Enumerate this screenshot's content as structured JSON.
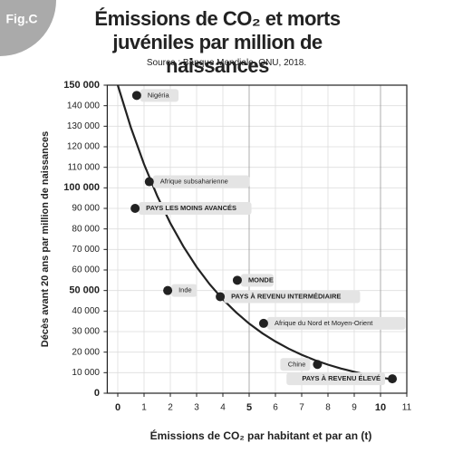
{
  "chart_data": {
    "type": "scatter",
    "badge": "Fig.C",
    "title": "Émissions de CO₂ et morts juvéniles par million de naissances",
    "subtitle": "Source : Banque Mondiale, ONU, 2018.",
    "x_label": "Émissions de CO₂ par habitant et par an (t)",
    "y_label": "Décès avant 20 ans par million de naissances",
    "categories": [
      "Nigéria",
      "Afrique subsaharienne",
      "PAYS LES MOINS AVANCÉS",
      "Inde",
      "MONDE",
      "PAYS À REVENU INTERMÉDIAIRE",
      "Afrique du Nord et Moyen-Orient",
      "Chine",
      "PAYS À REVENU ÉLEVÉ"
    ],
    "x": [
      0.72,
      1.2,
      0.66,
      1.9,
      4.55,
      3.9,
      5.55,
      7.6,
      10.45
    ],
    "values": [
      145000,
      103000,
      90000,
      50000,
      55000,
      47000,
      34000,
      14000,
      7000
    ],
    "color": "#222222",
    "curve": {
      "x": [
        0,
        0.5,
        1,
        1.5,
        2,
        2.5,
        3,
        3.5,
        4,
        4.5,
        5,
        5.5,
        6,
        6.5,
        7,
        7.5,
        8,
        8.5,
        9,
        9.5,
        10,
        10.5
      ],
      "values": [
        150000,
        129300,
        111500,
        96100,
        82800,
        71400,
        61500,
        53000,
        45700,
        39400,
        33900,
        29200,
        25200,
        21700,
        18700,
        16100,
        13900,
        12000,
        10400,
        8900,
        7700,
        6600
      ]
    },
    "xlim": [
      -0.4,
      11
    ],
    "xticks": [
      0,
      1,
      2,
      3,
      4,
      5,
      6,
      7,
      8,
      9,
      10,
      11
    ],
    "ylim": [
      0,
      150000
    ],
    "yticks": [
      0,
      {
        "value": 10000,
        "label": "10 000"
      },
      {
        "value": 20000,
        "label": "20 000"
      },
      {
        "value": 30000,
        "label": "30 000"
      },
      {
        "value": 40000,
        "label": "40 000"
      },
      {
        "value": 50000,
        "label": "50 000"
      },
      {
        "value": 60000,
        "label": "60 000"
      },
      {
        "value": 70000,
        "label": "70 000"
      },
      {
        "value": 80000,
        "label": "80 000"
      },
      {
        "value": 90000,
        "label": "90 000"
      },
      {
        "value": 100000,
        "label": "100 000"
      },
      {
        "value": 110000,
        "label": "110 000"
      },
      {
        "value": 120000,
        "label": "120 000"
      },
      {
        "value": 130000,
        "label": "130 000"
      },
      {
        "value": 140000,
        "label": "140 000"
      },
      {
        "value": 150000,
        "label": "150 000"
      }
    ],
    "grid": true
  }
}
